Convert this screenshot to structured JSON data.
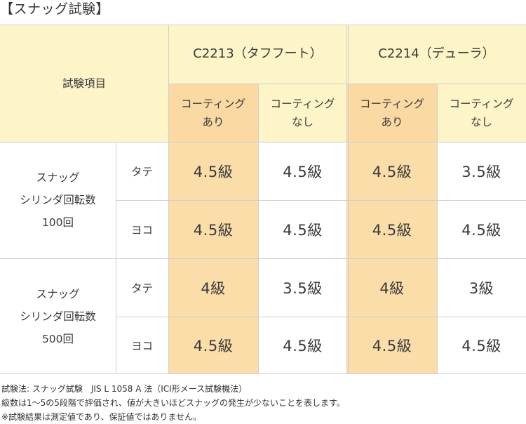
{
  "title": "【スナッグ試験】",
  "table": {
    "header_item": "試験項目",
    "products": [
      {
        "name": "C2213（タフフート）"
      },
      {
        "name": "C2214（デューラ）"
      }
    ],
    "variants": [
      "コーティング\nあり",
      "コーティング\nなし",
      "コーティング\nあり",
      "コーティング\nなし"
    ],
    "groups": [
      {
        "label": "スナッグ\nシリンダ回転数\n100回",
        "rows": [
          {
            "dir": "タテ",
            "values": [
              "4.5級",
              "4.5級",
              "4.5級",
              "3.5級"
            ]
          },
          {
            "dir": "ヨコ",
            "values": [
              "4.5級",
              "4.5級",
              "4.5級",
              "4.5級"
            ]
          }
        ]
      },
      {
        "label": "スナッグ\nシリンダ回転数\n500回",
        "rows": [
          {
            "dir": "タテ",
            "values": [
              "4級",
              "3.5級",
              "4級",
              "3級"
            ]
          },
          {
            "dir": "ヨコ",
            "values": [
              "4.5級",
              "4.5級",
              "4.5級",
              "4.5級"
            ]
          }
        ]
      }
    ]
  },
  "notes": [
    "試験法: スナッグ試験　JIS L 1058 A 法（ICI形メース試験機法）",
    "級数は1～5の5段階で評価され、値が大きいほどスナッグの発生が少ないことを表します。",
    "※試験結果は測定値であり、保証値ではありません。"
  ],
  "colors": {
    "header_bg": "#fdf4c8",
    "coating_highlight": "#fbdda9",
    "grid_line": "#cfcfcf"
  }
}
